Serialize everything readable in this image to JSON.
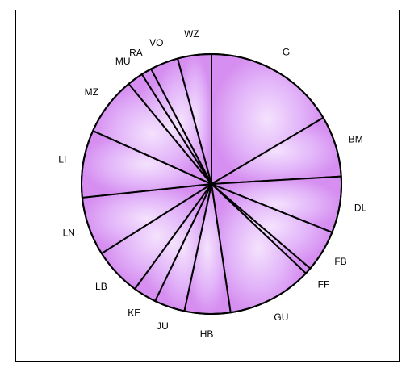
{
  "chart_data": {
    "type": "pie",
    "title": "",
    "slices": [
      {
        "label": "G",
        "value": 16.5
      },
      {
        "label": "BM",
        "value": 7.6
      },
      {
        "label": "DL",
        "value": 7.0
      },
      {
        "label": "FB",
        "value": 5.2
      },
      {
        "label": "FF",
        "value": 0.8
      },
      {
        "label": "GU",
        "value": 10.6
      },
      {
        "label": "HB",
        "value": 5.7
      },
      {
        "label": "JU",
        "value": 3.8
      },
      {
        "label": "KF",
        "value": 2.9
      },
      {
        "label": "LB",
        "value": 6.0
      },
      {
        "label": "LN",
        "value": 7.3
      },
      {
        "label": "LI",
        "value": 8.4
      },
      {
        "label": "MZ",
        "value": 7.3
      },
      {
        "label": "MU",
        "value": 2.0
      },
      {
        "label": "RA",
        "value": 1.3
      },
      {
        "label": "VO",
        "value": 3.5
      },
      {
        "label": "WZ",
        "value": 4.2
      }
    ],
    "start": "top",
    "direction": "clockwise",
    "fill_color": "#e0b0f8",
    "edge_fill_color": "#d68ff0",
    "stroke_color": "#000000",
    "legend": "none"
  }
}
